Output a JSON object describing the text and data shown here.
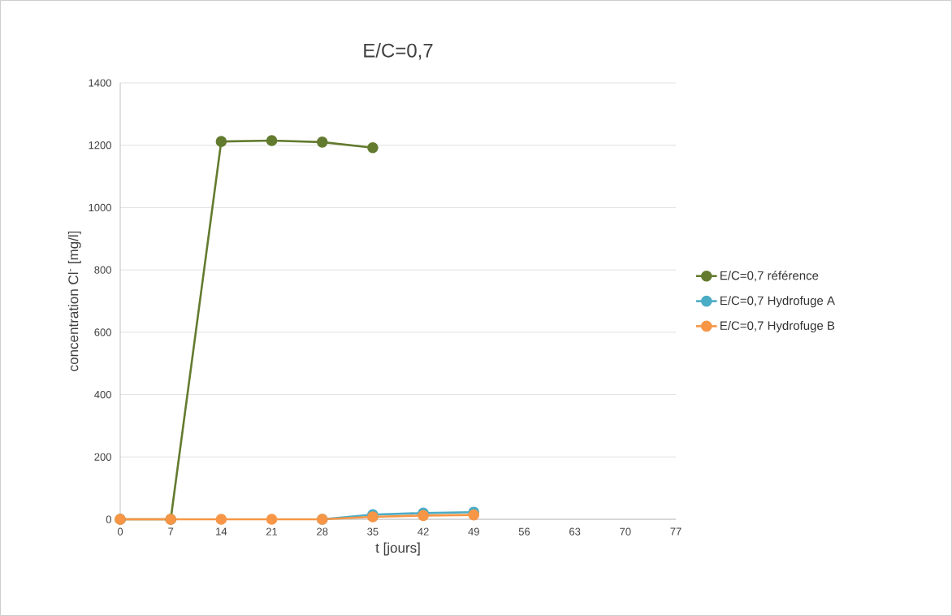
{
  "chart_data": {
    "type": "line",
    "title": "E/C=0,7",
    "xlabel": "t [jours]",
    "ylabel": "concentration Cl$^{-}$ [mg/l]",
    "x": [
      0,
      7,
      14,
      21,
      28,
      35,
      42,
      49
    ],
    "series": [
      {
        "name": "E/C=0,7 référence",
        "color": "#637b2f",
        "values": [
          0,
          0,
          1212,
          1215,
          1210,
          1192,
          null,
          null
        ]
      },
      {
        "name": "E/C=0,7 Hydrofuge A",
        "color": "#4bacc6",
        "values": [
          null,
          null,
          null,
          null,
          0,
          15,
          20,
          23
        ]
      },
      {
        "name": "E/C=0,7 Hydrofuge B",
        "color": "#f79646",
        "values": [
          0,
          0,
          0,
          0,
          0,
          8,
          12,
          14
        ]
      }
    ],
    "xlim": [
      0,
      77
    ],
    "xticks": [
      0,
      7,
      14,
      21,
      28,
      35,
      42,
      49,
      56,
      63,
      70,
      77
    ],
    "ylim": [
      0,
      1400
    ],
    "yticks": [
      0,
      200,
      400,
      600,
      800,
      1000,
      1200,
      1400
    ],
    "grid": "y",
    "legend": "right",
    "marker": "circle",
    "line_style": "solid"
  }
}
